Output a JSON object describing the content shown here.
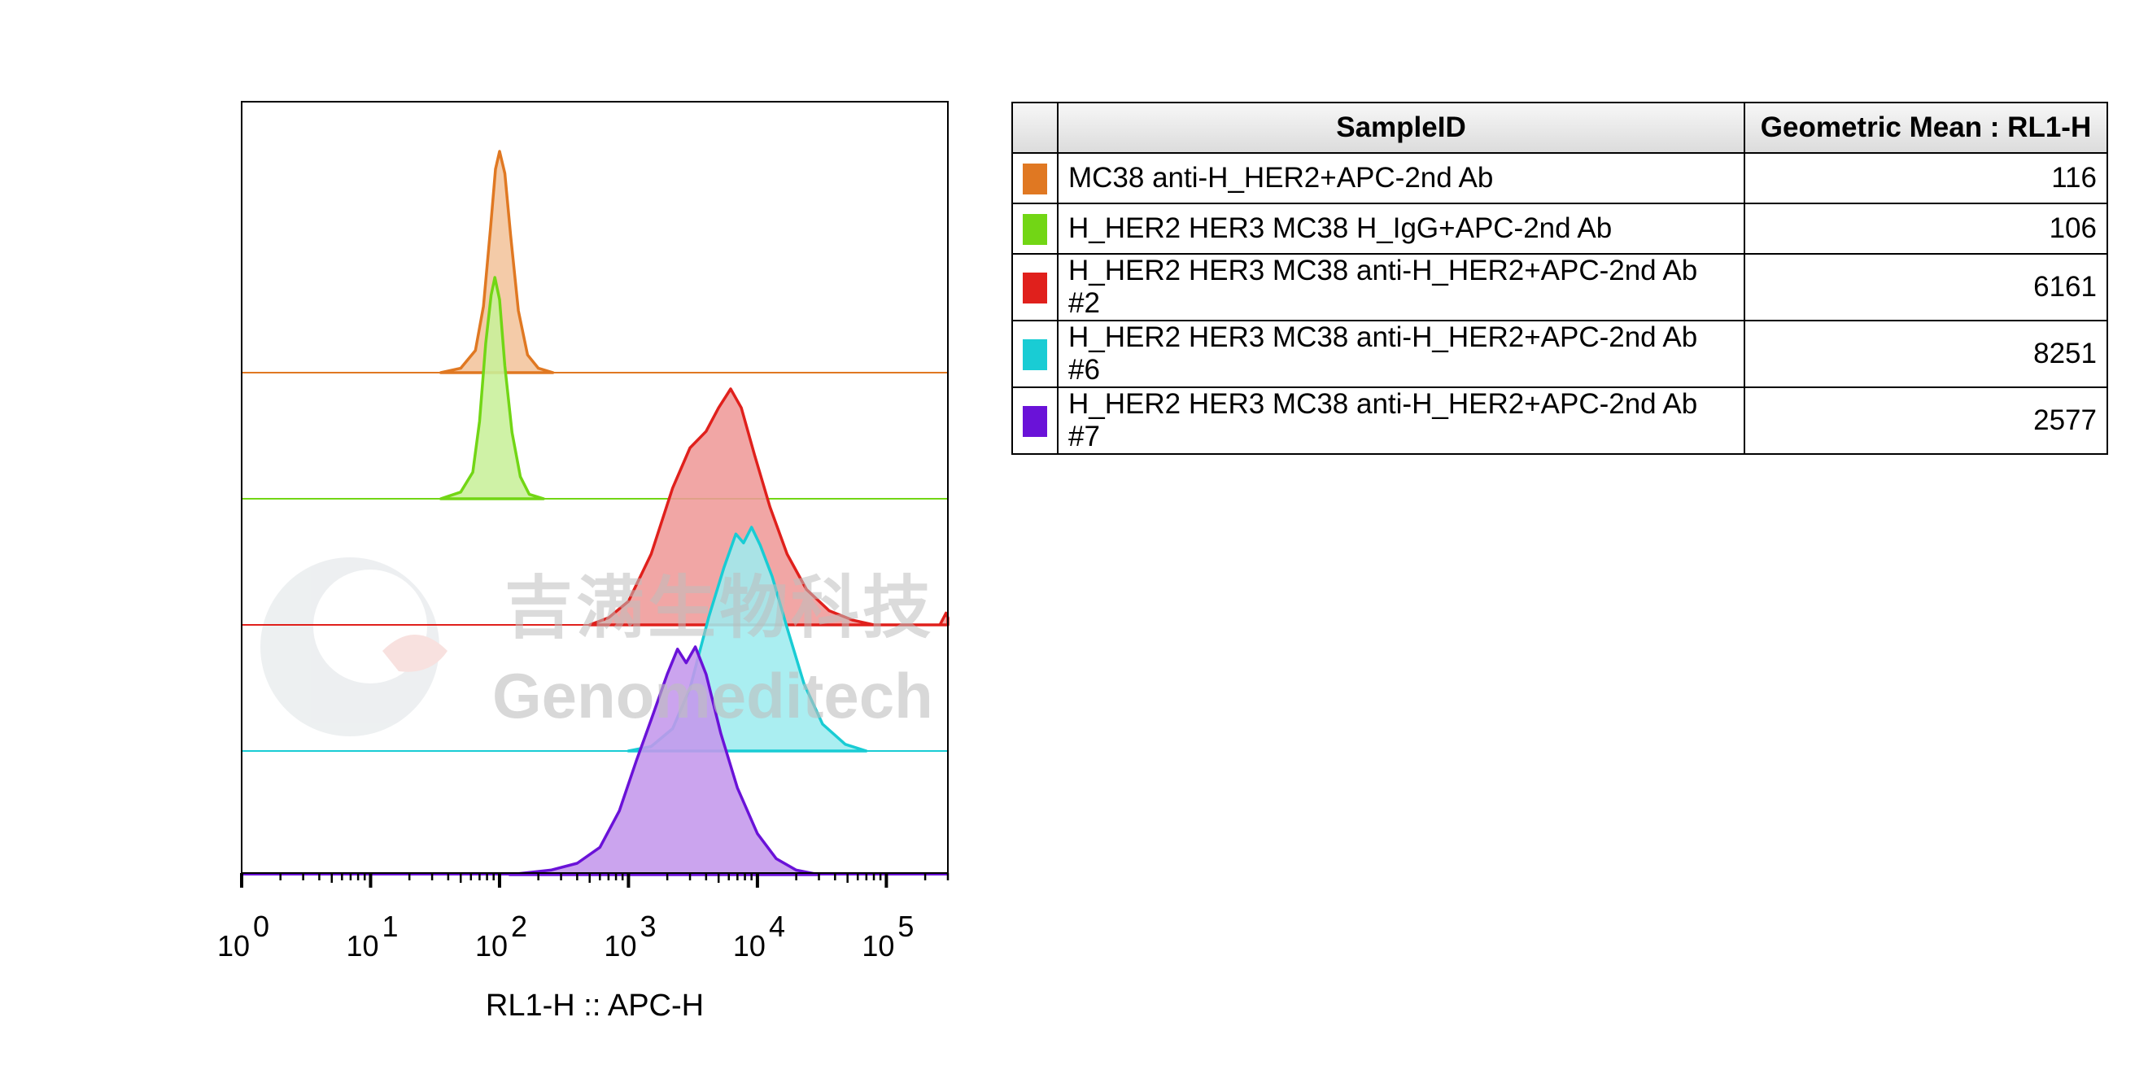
{
  "chart_data": {
    "type": "histogram-overlay",
    "xlabel": "RL1-H :: APC-H",
    "x_scale": "log",
    "xlim": [
      1,
      300000
    ],
    "x_ticks": [
      {
        "value": 1,
        "base": "10",
        "exp": "0"
      },
      {
        "value": 10,
        "base": "10",
        "exp": "1"
      },
      {
        "value": 100,
        "base": "10",
        "exp": "2"
      },
      {
        "value": 1000,
        "base": "10",
        "exp": "3"
      },
      {
        "value": 10000,
        "base": "10",
        "exp": "4"
      },
      {
        "value": 100000,
        "base": "10",
        "exp": "5"
      }
    ],
    "series": [
      {
        "name": "MC38 anti-H_HER2+APC-2nd Ab",
        "color": "#e07822",
        "fill": "#f2c49c",
        "points": [
          [
            35,
            0
          ],
          [
            50,
            0.02
          ],
          [
            65,
            0.1
          ],
          [
            75,
            0.3
          ],
          [
            85,
            0.65
          ],
          [
            93,
            0.92
          ],
          [
            100,
            1.0
          ],
          [
            110,
            0.9
          ],
          [
            122,
            0.62
          ],
          [
            140,
            0.28
          ],
          [
            165,
            0.08
          ],
          [
            200,
            0.02
          ],
          [
            260,
            0
          ]
        ]
      },
      {
        "name": "H_HER2 HER3 MC38 H_IgG+APC-2nd Ab",
        "color": "#72d615",
        "fill": "#c8f09a",
        "points": [
          [
            35,
            0
          ],
          [
            50,
            0.03
          ],
          [
            62,
            0.12
          ],
          [
            70,
            0.35
          ],
          [
            78,
            0.7
          ],
          [
            86,
            0.92
          ],
          [
            92,
            1.0
          ],
          [
            100,
            0.9
          ],
          [
            110,
            0.6
          ],
          [
            125,
            0.3
          ],
          [
            145,
            0.1
          ],
          [
            170,
            0.02
          ],
          [
            220,
            0
          ]
        ]
      },
      {
        "name": "H_HER2 HER3 MC38 anti-H_HER2+APC-2nd Ab #2",
        "color": "#e0201c",
        "fill": "#ef9a99",
        "points": [
          [
            500,
            0
          ],
          [
            700,
            0.03
          ],
          [
            1000,
            0.1
          ],
          [
            1500,
            0.3
          ],
          [
            2200,
            0.58
          ],
          [
            3000,
            0.75
          ],
          [
            4000,
            0.82
          ],
          [
            5000,
            0.92
          ],
          [
            6200,
            1.0
          ],
          [
            7500,
            0.92
          ],
          [
            9500,
            0.72
          ],
          [
            12500,
            0.5
          ],
          [
            17000,
            0.3
          ],
          [
            24000,
            0.15
          ],
          [
            36000,
            0.06
          ],
          [
            55000,
            0.02
          ],
          [
            80000,
            0
          ],
          [
            260000,
            0
          ],
          [
            290000,
            0.05
          ],
          [
            300000,
            0.03
          ]
        ]
      },
      {
        "name": "H_HER2 HER3 MC38 anti-H_HER2+APC-2nd Ab #6",
        "color": "#19ccd4",
        "fill": "#9eecef",
        "points": [
          [
            1000,
            0
          ],
          [
            1500,
            0.02
          ],
          [
            2200,
            0.1
          ],
          [
            3000,
            0.28
          ],
          [
            4200,
            0.6
          ],
          [
            5500,
            0.82
          ],
          [
            6800,
            0.97
          ],
          [
            7800,
            0.93
          ],
          [
            9000,
            1.0
          ],
          [
            10500,
            0.92
          ],
          [
            13000,
            0.78
          ],
          [
            17000,
            0.55
          ],
          [
            23000,
            0.3
          ],
          [
            32000,
            0.12
          ],
          [
            48000,
            0.03
          ],
          [
            70000,
            0
          ]
        ]
      },
      {
        "name": "H_HER2 HER3 MC38 anti-H_HER2+APC-2nd Ab #7",
        "color": "#6a12d8",
        "fill": "#c497ec",
        "points": [
          [
            120,
            0
          ],
          [
            250,
            0.02
          ],
          [
            400,
            0.05
          ],
          [
            600,
            0.12
          ],
          [
            850,
            0.28
          ],
          [
            1150,
            0.5
          ],
          [
            1500,
            0.68
          ],
          [
            2000,
            0.88
          ],
          [
            2400,
            0.99
          ],
          [
            2800,
            0.93
          ],
          [
            3300,
            1.0
          ],
          [
            4000,
            0.88
          ],
          [
            5200,
            0.62
          ],
          [
            7000,
            0.38
          ],
          [
            10000,
            0.18
          ],
          [
            14000,
            0.07
          ],
          [
            20000,
            0.02
          ],
          [
            30000,
            0
          ]
        ]
      }
    ]
  },
  "watermark": {
    "chinese": "吉满生物科技",
    "english": "Genomeditech"
  },
  "legend_table": {
    "headers": {
      "sample_id": "SampleID",
      "value": "Geometric Mean : RL1-H"
    },
    "rows": [
      {
        "color": "#e07822",
        "sample_id": "MC38 anti-H_HER2+APC-2nd Ab",
        "value": "116"
      },
      {
        "color": "#72d615",
        "sample_id": "H_HER2 HER3 MC38 H_IgG+APC-2nd Ab",
        "value": "106"
      },
      {
        "color": "#e0201c",
        "sample_id": "H_HER2 HER3 MC38 anti-H_HER2+APC-2nd Ab #2",
        "value": "6161"
      },
      {
        "color": "#19ccd4",
        "sample_id": "H_HER2 HER3 MC38 anti-H_HER2+APC-2nd Ab #6",
        "value": "8251"
      },
      {
        "color": "#6a12d8",
        "sample_id": "H_HER2 HER3 MC38 anti-H_HER2+APC-2nd Ab #7",
        "value": "2577"
      }
    ]
  }
}
